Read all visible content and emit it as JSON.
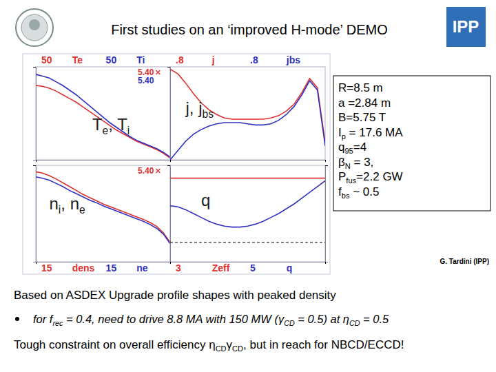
{
  "header": {
    "title": "First studies on an ‘improved H-mode’ DEMO",
    "logo": "IPP"
  },
  "chart_data": [
    {
      "type": "line",
      "x": [
        0,
        0.05,
        0.1,
        0.15,
        0.2,
        0.25,
        0.3,
        0.35,
        0.4,
        0.45,
        0.5,
        0.55,
        0.6,
        0.65,
        0.7,
        0.75,
        0.8,
        0.85,
        0.9,
        0.95,
        1
      ],
      "xlim": [
        0,
        1
      ],
      "xticks": [
        0,
        1
      ],
      "ylim": [
        0,
        50
      ],
      "yticks": [
        50
      ],
      "tick_labels": "y",
      "annotation": [
        {
          "t": "T"
        },
        {
          "sub": "e"
        },
        {
          "t": ", T"
        },
        {
          "sub": "i"
        }
      ],
      "time_labels": [
        {
          "text": "5.40",
          "color": "#e03030"
        },
        {
          "text": "5.40",
          "color": "#3030c0"
        }
      ],
      "series": [
        {
          "name": "Te",
          "color": "#e03030",
          "values": [
            40,
            39.5,
            38.5,
            37,
            35,
            33,
            31,
            28.5,
            26,
            23.5,
            21,
            18.5,
            16,
            14,
            12,
            10,
            8.5,
            7,
            5.5,
            3.5,
            1
          ]
        },
        {
          "name": "Ti",
          "color": "#3030c0",
          "values": [
            46,
            45,
            44,
            42,
            40,
            37.5,
            35,
            32,
            29,
            26,
            23,
            20,
            17.5,
            15,
            12.5,
            10.5,
            9,
            7.5,
            6,
            4,
            1.5
          ]
        }
      ]
    },
    {
      "type": "line",
      "x": [
        0,
        0.05,
        0.1,
        0.15,
        0.2,
        0.25,
        0.3,
        0.35,
        0.4,
        0.45,
        0.5,
        0.55,
        0.6,
        0.65,
        0.7,
        0.75,
        0.8,
        0.85,
        0.9,
        0.95,
        1
      ],
      "xlim": [
        0,
        1
      ],
      "xticks": [
        0,
        1
      ],
      "ylim": [
        0,
        0.8
      ],
      "yticks": [
        {
          "value": 0.8,
          "label": ".8"
        }
      ],
      "tick_labels": "y",
      "annotation": [
        {
          "t": "j, j"
        },
        {
          "sub": "bs"
        }
      ],
      "series": [
        {
          "name": "j",
          "color": "#e03030",
          "values": [
            0.78,
            0.74,
            0.66,
            0.57,
            0.49,
            0.43,
            0.39,
            0.36,
            0.35,
            0.35,
            0.35,
            0.35,
            0.35,
            0.36,
            0.38,
            0.42,
            0.48,
            0.58,
            0.7,
            0.62,
            0.15
          ]
        },
        {
          "name": "jbs",
          "color": "#3030c0",
          "values": [
            0,
            0.08,
            0.16,
            0.22,
            0.26,
            0.29,
            0.31,
            0.32,
            0.32,
            0.32,
            0.31,
            0.3,
            0.3,
            0.31,
            0.34,
            0.39,
            0.46,
            0.56,
            0.68,
            0.6,
            0.12
          ]
        }
      ]
    },
    {
      "type": "line",
      "x": [
        0,
        0.05,
        0.1,
        0.15,
        0.2,
        0.25,
        0.3,
        0.35,
        0.4,
        0.45,
        0.5,
        0.55,
        0.6,
        0.65,
        0.7,
        0.75,
        0.8,
        0.85,
        0.9,
        0.95,
        1
      ],
      "xlim": [
        0,
        1
      ],
      "xticks": [
        0,
        1
      ],
      "ylim": [
        0,
        15
      ],
      "yticks": [
        15
      ],
      "tick_labels": "y",
      "annotation": [
        {
          "t": "n"
        },
        {
          "sub": "i"
        },
        {
          "t": ", n"
        },
        {
          "sub": "e"
        }
      ],
      "time_labels": [
        {
          "text": "5.40",
          "color": "#e03030"
        }
      ],
      "series": [
        {
          "name": "dens",
          "color": "#e03030",
          "values": [
            14,
            13.8,
            13.4,
            12.9,
            12.3,
            11.7,
            11.1,
            10.5,
            10,
            9.5,
            9,
            8.6,
            8.2,
            7.8,
            7.4,
            7,
            6.6,
            6.1,
            5.5,
            4.5,
            3
          ]
        },
        {
          "name": "ne",
          "color": "#3030c0",
          "values": [
            13.2,
            13,
            12.7,
            12.2,
            11.7,
            11.1,
            10.6,
            10.1,
            9.6,
            9.2,
            8.7,
            8.3,
            7.9,
            7.5,
            7.1,
            6.7,
            6.3,
            5.8,
            5.2,
            4.3,
            2.8
          ]
        }
      ]
    },
    {
      "type": "line",
      "x": [
        0,
        0.05,
        0.1,
        0.15,
        0.2,
        0.25,
        0.3,
        0.35,
        0.4,
        0.45,
        0.5,
        0.55,
        0.6,
        0.65,
        0.7,
        0.75,
        0.8,
        0.85,
        0.9,
        0.95,
        1
      ],
      "xlim": [
        0,
        1
      ],
      "xticks": [
        0,
        1
      ],
      "ylim": [
        0,
        5
      ],
      "yticks": [
        5
      ],
      "y2lim": [
        0,
        3
      ],
      "y2ticks": [
        3
      ],
      "tick_labels": "y",
      "annotation": [
        {
          "t": "q"
        }
      ],
      "reference_lines": [
        {
          "value": 1,
          "color": "#000000",
          "line_style": "dashed"
        }
      ],
      "series": [
        {
          "name": "Zeff",
          "color": "#e03030",
          "axis": "y2",
          "values": [
            2.6,
            2.6,
            2.6,
            2.6,
            2.6,
            2.6,
            2.6,
            2.6,
            2.6,
            2.6,
            2.6,
            2.6,
            2.6,
            2.6,
            2.6,
            2.6,
            2.6,
            2.6,
            2.6,
            2.6,
            2.6
          ]
        },
        {
          "name": "q",
          "color": "#3030c0",
          "values": [
            2.9,
            2.85,
            2.7,
            2.5,
            2.3,
            2.1,
            1.95,
            1.85,
            1.8,
            1.8,
            1.85,
            1.95,
            2.1,
            2.3,
            2.5,
            2.75,
            3,
            3.3,
            3.6,
            3.9,
            4.2
          ]
        }
      ]
    }
  ],
  "parameters": [
    [
      {
        "t": "R=8.5 m"
      }
    ],
    [
      {
        "t": "a =2.84 m"
      }
    ],
    [
      {
        "t": "B=5.75 T"
      }
    ],
    [
      {
        "t": "I"
      },
      {
        "sub": "p"
      },
      {
        "t": " = 17.6 MA"
      }
    ],
    [
      {
        "t": "q"
      },
      {
        "sub": "95"
      },
      {
        "t": "=4"
      }
    ],
    [
      {
        "t": "β"
      },
      {
        "sub": "N"
      },
      {
        "t": " = 3,"
      }
    ],
    [
      {
        "t": "P"
      },
      {
        "sub": "fus"
      },
      {
        "t": "=2.2 GW"
      }
    ],
    [
      {
        "t": "f"
      },
      {
        "sub": "bs"
      },
      {
        "t": " ~ 0.5"
      }
    ]
  ],
  "credit": "G. Tardini (IPP)",
  "text": {
    "intro": "Based on ASDEX Upgrade profile shapes with peaked density",
    "bullet": [
      {
        "t": "for f"
      },
      {
        "sub": "rec"
      },
      {
        "t": " = 0.4, need to drive 8.8 MA with 150 MW (γ"
      },
      {
        "sub": "CD"
      },
      {
        "t": " = 0.5) at η"
      },
      {
        "sub": "CD"
      },
      {
        "t": " = 0.5"
      }
    ],
    "conclusion": [
      {
        "t": "Tough constraint on overall efficiency η"
      },
      {
        "sub": "CD"
      },
      {
        "t": "γ"
      },
      {
        "sub": "CD"
      },
      {
        "t": ", but in reach for NBCD/ECCD!"
      }
    ]
  }
}
